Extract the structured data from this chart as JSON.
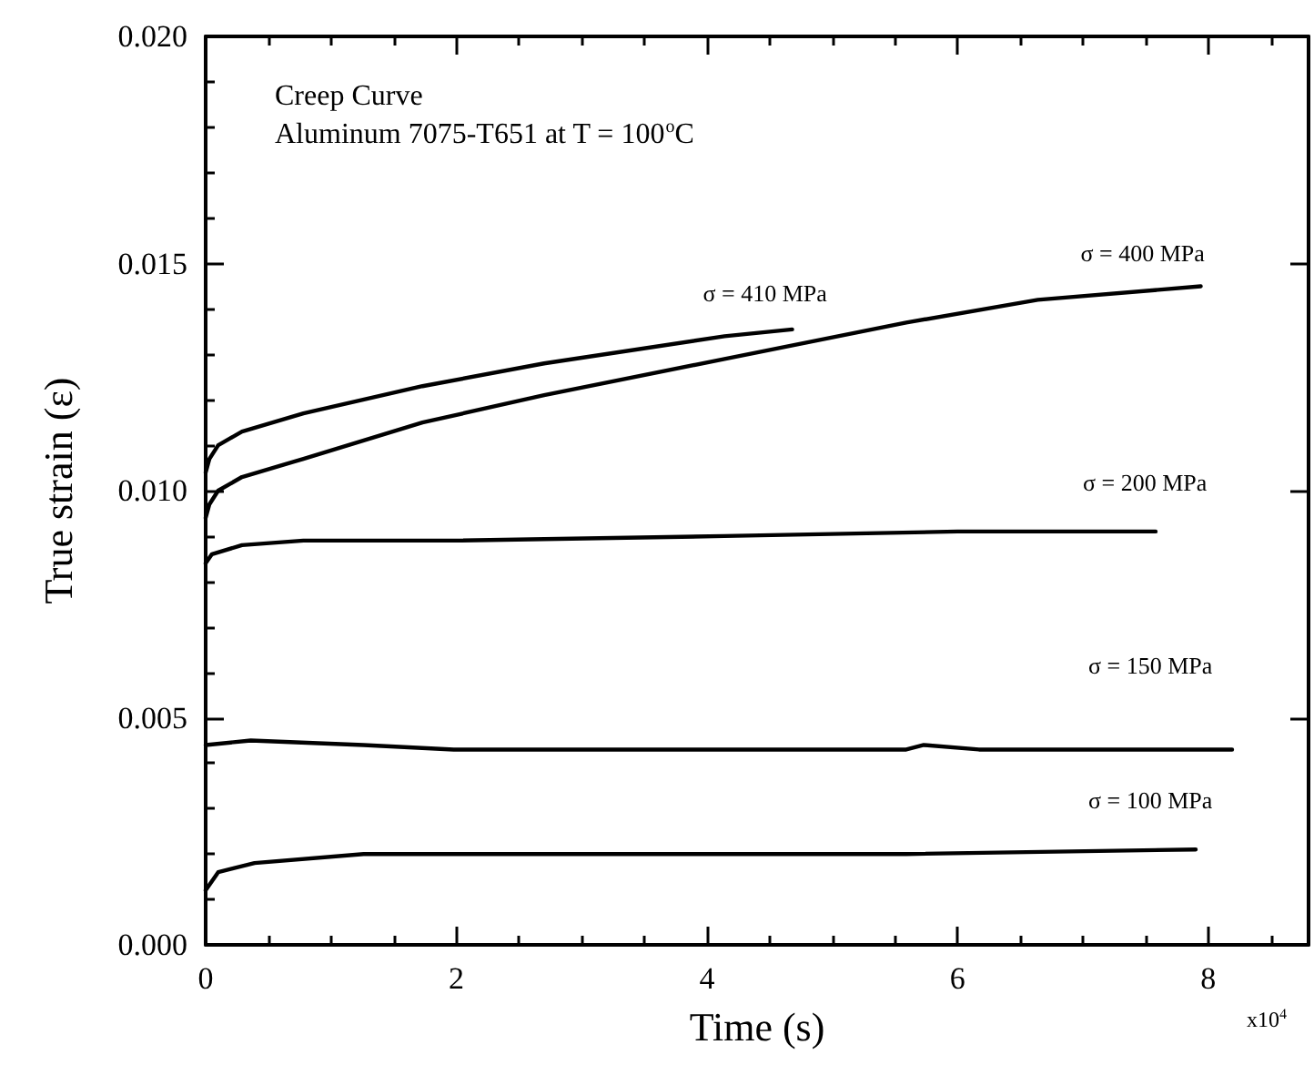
{
  "chart_data": {
    "type": "line",
    "title": "Creep Curve",
    "subtitle": "Aluminum 7075-T651 at T = 100$^{o}$C",
    "xlabel": "Time (s)",
    "ylabel": "True strain (ε)",
    "annotations": [
      "x10$^{4}$"
    ],
    "xlim": [
      0,
      8.8
    ],
    "xticks": [
      0,
      2,
      4,
      6,
      8
    ],
    "ylim": [
      0,
      0.02
    ],
    "yticks": [
      {
        "value": 0,
        "label": "0.000"
      },
      0.005,
      {
        "value": 0.01,
        "label": "0.010"
      },
      0.015,
      {
        "value": 0.02,
        "label": "0.020"
      }
    ],
    "grid": false,
    "legend": false,
    "marker": "none",
    "line_style": "solid",
    "series": [
      {
        "name": "σ = 410 MPa",
        "color": "#000000",
        "x": [
          0,
          0.03,
          0.1,
          0.29,
          0.78,
          1.73,
          2.7,
          4.14,
          4.68
        ],
        "values": [
          0.0104,
          0.0107,
          0.011,
          0.0113,
          0.0117,
          0.0123,
          0.0128,
          0.0134,
          0.01355
        ]
      },
      {
        "name": "σ = 400 MPa",
        "color": "#000000",
        "x": [
          0,
          0.03,
          0.1,
          0.29,
          0.78,
          1.73,
          2.7,
          4.14,
          5.59,
          6.64,
          7.94
        ],
        "values": [
          0.0094,
          0.0097,
          0.01,
          0.0103,
          0.0107,
          0.0115,
          0.0121,
          0.0129,
          0.0137,
          0.0142,
          0.0145
        ]
      },
      {
        "name": "σ = 200 MPa",
        "color": "#000000",
        "x": [
          0,
          0.05,
          0.29,
          0.78,
          2,
          4.14,
          6,
          7.58
        ],
        "values": [
          0.0084,
          0.0086,
          0.0088,
          0.0089,
          0.0089,
          0.009,
          0.0091,
          0.0091
        ]
      },
      {
        "name": "σ = 150 MPa",
        "color": "#000000",
        "x": [
          0,
          0.36,
          1.26,
          1.98,
          3.28,
          5.59,
          5.73,
          6.17,
          7.15,
          8.19
        ],
        "values": [
          0.0044,
          0.0045,
          0.0044,
          0.0043,
          0.0043,
          0.0043,
          0.0044,
          0.0043,
          0.0043,
          0.0043
        ]
      },
      {
        "name": "σ = 100 MPa",
        "color": "#000000",
        "x": [
          0,
          0.1,
          0.39,
          1.26,
          3.87,
          5.59,
          7.9
        ],
        "values": [
          0.0012,
          0.0016,
          0.0018,
          0.002,
          0.002,
          0.002,
          0.0021
        ]
      }
    ]
  }
}
